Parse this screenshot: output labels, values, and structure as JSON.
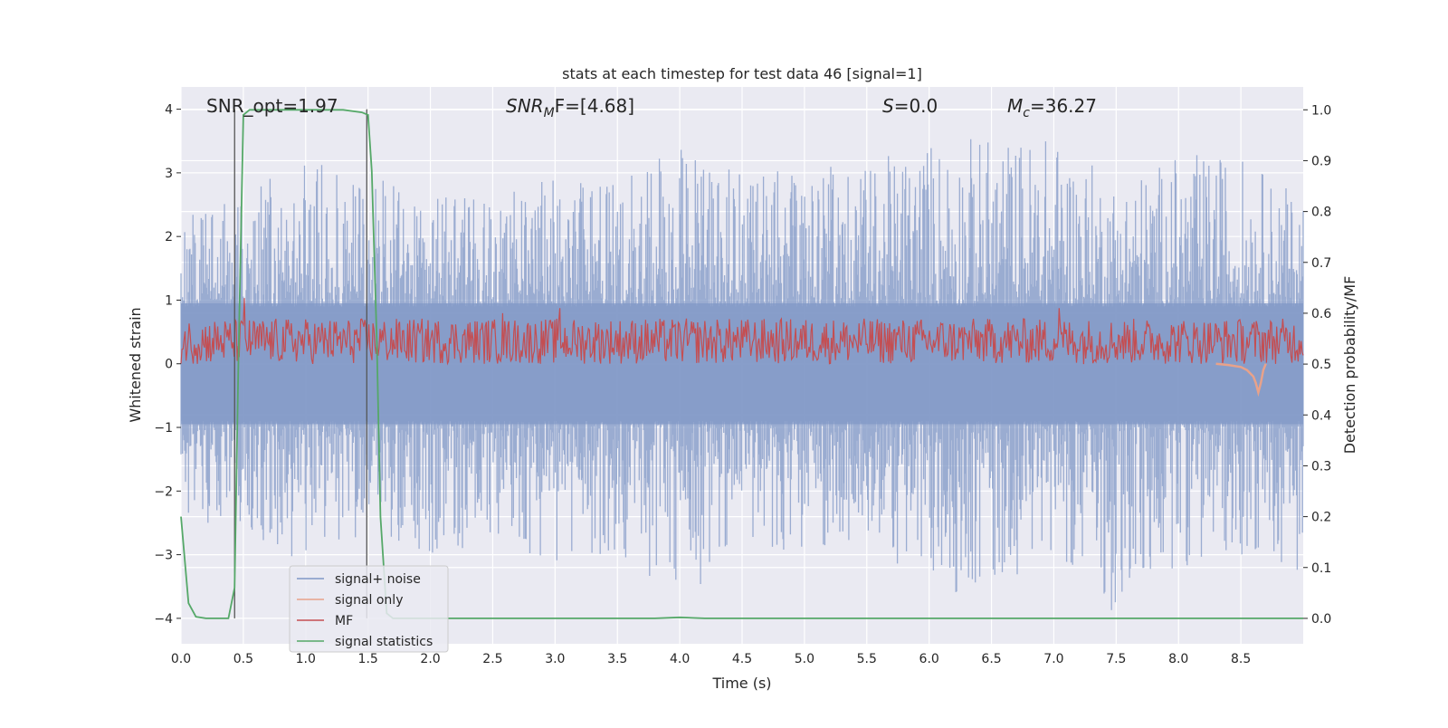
{
  "chart_data": {
    "type": "line",
    "title": "stats at each timestep for test data 46 [signal=1]",
    "xlabel": "Time (s)",
    "ylabel_left": "Whitened strain",
    "ylabel_right": "Detection probability/MF",
    "xlim": [
      0.0,
      9.0
    ],
    "ylim_left": [
      -4.4,
      4.35
    ],
    "ylim_right": [
      -0.05,
      1.045
    ],
    "x_ticks": [
      "0.0",
      "0.5",
      "1.0",
      "1.5",
      "2.0",
      "2.5",
      "3.0",
      "3.5",
      "4.0",
      "4.5",
      "5.0",
      "5.5",
      "6.0",
      "6.5",
      "7.0",
      "7.5",
      "8.0",
      "8.5"
    ],
    "y_ticks_left": [
      "4",
      "3",
      "2",
      "1",
      "0",
      "−1",
      "−2",
      "−3",
      "−4"
    ],
    "y_ticks_right": [
      "1.0",
      "0.9",
      "0.8",
      "0.7",
      "0.6",
      "0.5",
      "0.4",
      "0.3",
      "0.2",
      "0.1",
      "0.0"
    ],
    "grid": true,
    "legend_position": "lower-left",
    "annotations": {
      "snr_opt": "SNR_opt=1.97",
      "snr_mf_sym": "SNR",
      "snr_mf_sub": "M",
      "snr_mf_tail": "F=[4.68]",
      "s_sym": "S",
      "s_tail": "=0.0",
      "mc_sym": "M",
      "mc_sub": "c",
      "mc_tail": "=36.27"
    },
    "vlines_x": [
      0.43,
      1.49
    ],
    "series": [
      {
        "name": "signal+ noise",
        "color": "#7f97c6",
        "axis": "left",
        "envelope": {
          "x": [
            0.0,
            0.5,
            1.0,
            1.5,
            2.0,
            2.5,
            3.0,
            3.5,
            4.0,
            4.5,
            5.0,
            5.5,
            6.0,
            6.5,
            7.0,
            7.5,
            8.0,
            8.5,
            9.0
          ],
          "max": [
            2.3,
            2.7,
            3.2,
            3.0,
            2.7,
            2.7,
            2.9,
            2.9,
            3.6,
            3.0,
            3.2,
            3.1,
            3.6,
            3.6,
            3.6,
            2.9,
            3.3,
            3.3,
            2.6
          ],
          "min": [
            -2.5,
            -2.5,
            -3.4,
            -2.6,
            -3.0,
            -2.8,
            -3.1,
            -3.0,
            -4.0,
            -2.7,
            -3.1,
            -2.8,
            -3.6,
            -3.6,
            -2.9,
            -4.0,
            -3.2,
            -3.0,
            -3.3
          ]
        }
      },
      {
        "name": "signal only",
        "color": "#e8a28a",
        "axis": "left",
        "x": [
          8.3,
          8.4,
          8.5,
          8.55,
          8.6,
          8.62,
          8.64,
          8.66,
          8.68,
          8.7
        ],
        "values": [
          0,
          -0.02,
          -0.05,
          -0.1,
          -0.2,
          -0.3,
          -0.45,
          -0.3,
          -0.1,
          0
        ]
      },
      {
        "name": "MF",
        "color": "#c44e52",
        "axis": "right",
        "center": 0.545,
        "spread": 0.045,
        "peaks": [
          [
            0.51,
            0.63
          ],
          [
            2.58,
            0.6
          ],
          [
            3.04,
            0.61
          ],
          [
            7.04,
            0.61
          ]
        ]
      },
      {
        "name": "signal statistics",
        "color": "#55a868",
        "axis": "right",
        "x": [
          0.0,
          0.06,
          0.12,
          0.2,
          0.3,
          0.38,
          0.43,
          0.46,
          0.5,
          0.55,
          0.7,
          1.0,
          1.3,
          1.45,
          1.5,
          1.53,
          1.57,
          1.6,
          1.65,
          1.7,
          2.0,
          3.0,
          3.8,
          4.0,
          4.2,
          5.0,
          6.0,
          7.0,
          8.0,
          9.0
        ],
        "values": [
          0.2,
          0.03,
          0.003,
          0.0,
          0.0,
          0.0,
          0.06,
          0.5,
          0.99,
          1.0,
          1.0,
          1.0,
          1.0,
          0.995,
          0.99,
          0.88,
          0.55,
          0.2,
          0.01,
          0.0,
          0.0,
          0.0,
          0.0,
          0.002,
          0.0,
          0.0,
          0.0,
          0.0,
          0.0,
          0.0
        ]
      }
    ]
  }
}
